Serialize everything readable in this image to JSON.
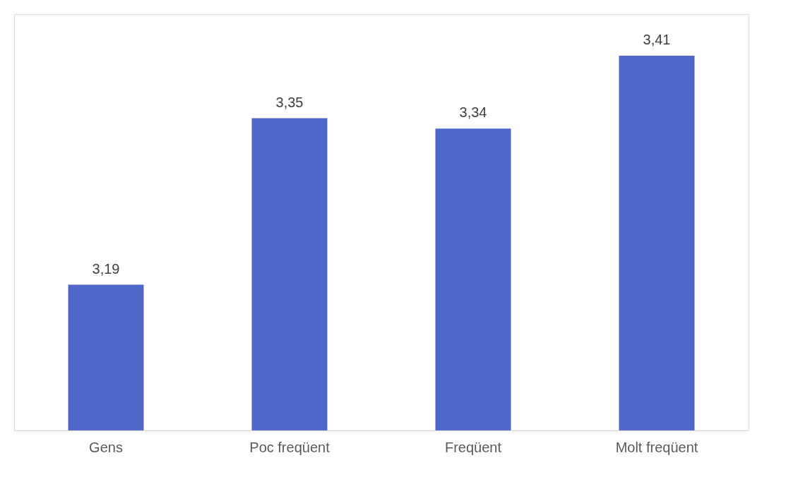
{
  "chart_data": {
    "type": "bar",
    "categories": [
      "Gens",
      "Poc freqüent",
      "Freqüent",
      "Molt freqüent"
    ],
    "values": [
      3.19,
      3.35,
      3.34,
      3.41
    ],
    "value_labels": [
      "3,19",
      "3,35",
      "3,34",
      "3,41"
    ],
    "color": "#4f67c8",
    "ylim": [
      3.05,
      3.45
    ],
    "tick_labels": "x",
    "grid": false
  }
}
